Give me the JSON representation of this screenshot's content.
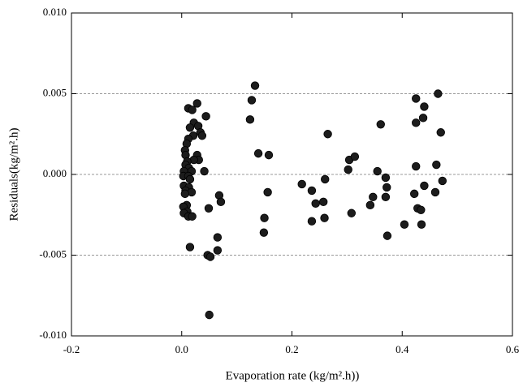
{
  "chart_data": {
    "type": "scatter",
    "x_label": "Evaporation rate (kg/m².h))",
    "y_label": "Residuals(kg/m².h)",
    "color": "#1c1c1c",
    "grid": true,
    "xlim": [
      -0.2,
      0.6
    ],
    "xticks": [
      -0.2,
      {
        "value": 0,
        "label": "0.0"
      },
      0.2,
      0.4,
      0.6
    ],
    "ylim": [
      -0.01,
      0.01
    ],
    "yticks": [
      {
        "value": -0.01,
        "label": "-0.010"
      },
      -0.005,
      {
        "value": 0,
        "label": "0.000"
      },
      0.005,
      {
        "value": 0.01,
        "label": "0.010"
      }
    ],
    "x": [
      0.012,
      0.019,
      0.028,
      0.022,
      0.015,
      0.03,
      0.044,
      0.034,
      0.037,
      0.021,
      0.012,
      0.009,
      0.006,
      0.007,
      0.028,
      0.031,
      0.022,
      0.01,
      0.007,
      0.013,
      0.004,
      0.041,
      0.018,
      0.003,
      0.012,
      0.015,
      0.004,
      0.013,
      0.007,
      0.018,
      0.006,
      0.009,
      0.003,
      0.01,
      0.004,
      0.012,
      0.019,
      0.049,
      0.015,
      0.047,
      0.052,
      0.05,
      0.065,
      0.065,
      0.068,
      0.071,
      0.133,
      0.127,
      0.124,
      0.139,
      0.158,
      0.156,
      0.15,
      0.149,
      0.218,
      0.236,
      0.243,
      0.236,
      0.257,
      0.26,
      0.259,
      0.265,
      0.302,
      0.304,
      0.314,
      0.308,
      0.342,
      0.347,
      0.355,
      0.361,
      0.37,
      0.372,
      0.37,
      0.373,
      0.404,
      0.422,
      0.425,
      0.425,
      0.425,
      0.428,
      0.434,
      0.435,
      0.44,
      0.438,
      0.44,
      0.46,
      0.462,
      0.465,
      0.47,
      0.473
    ],
    "values": [
      0.0041,
      0.004,
      0.0044,
      0.0032,
      0.0029,
      0.003,
      0.0036,
      0.0026,
      0.0024,
      0.0024,
      0.0022,
      0.0019,
      0.0015,
      0.0012,
      0.0012,
      0.0009,
      0.0009,
      0.0008,
      0.0006,
      0.0004,
      0.0002,
      0.0002,
      0.0002,
      -0.0001,
      -0.0001,
      -0.0003,
      -0.0007,
      -0.0008,
      -0.001,
      -0.0011,
      -0.0012,
      -0.0019,
      -0.002,
      -0.0023,
      -0.0024,
      -0.0026,
      -0.0026,
      -0.0021,
      -0.0045,
      -0.005,
      -0.0051,
      -0.0087,
      -0.0039,
      -0.0047,
      -0.0013,
      -0.0017,
      0.0055,
      0.0046,
      0.0034,
      0.0013,
      0.0012,
      -0.0011,
      -0.0027,
      -0.0036,
      -0.0006,
      -0.001,
      -0.0018,
      -0.0029,
      -0.0017,
      -0.0003,
      -0.0027,
      0.0025,
      0.0003,
      0.0009,
      0.0011,
      -0.0024,
      -0.0019,
      -0.0014,
      0.0002,
      0.0031,
      -0.0002,
      -0.0008,
      -0.0014,
      -0.0038,
      -0.0031,
      -0.0012,
      0.0005,
      0.0032,
      0.0047,
      -0.0021,
      -0.0022,
      -0.0031,
      -0.0007,
      0.0035,
      0.0042,
      -0.0011,
      0.0006,
      0.005,
      0.0026,
      -0.0004
    ]
  }
}
